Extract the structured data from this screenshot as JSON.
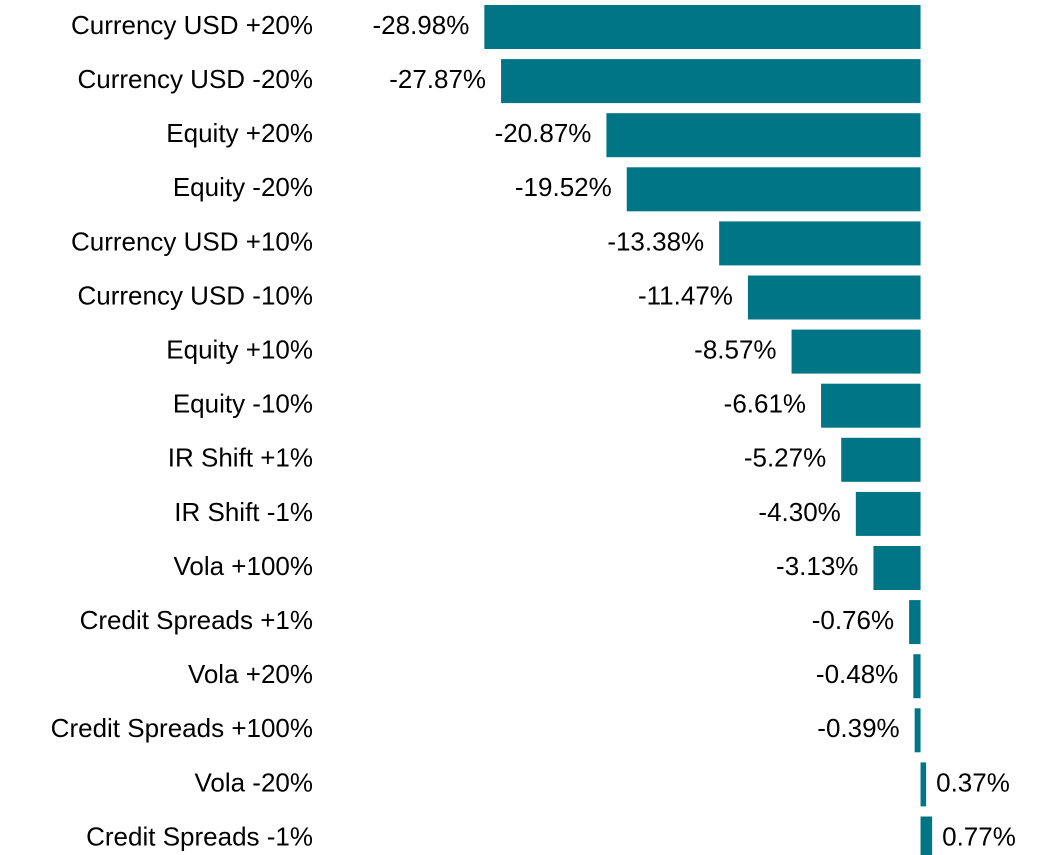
{
  "chart_data": {
    "type": "barh",
    "categories": [
      "Currency USD +20%",
      "Currency USD -20%",
      "Equity +20%",
      "Equity -20%",
      "Currency USD +10%",
      "Currency USD -10%",
      "Equity +10%",
      "Equity -10%",
      "IR Shift +1%",
      "IR Shift -1%",
      "Vola +100%",
      "Credit Spreads +1%",
      "Vola +20%",
      "Credit Spreads +100%",
      "Vola -20%",
      "Credit Spreads -1%"
    ],
    "values": [
      -28.98,
      -27.87,
      -20.87,
      -19.52,
      -13.38,
      -11.47,
      -8.57,
      -6.61,
      -5.27,
      -4.3,
      -3.13,
      -0.76,
      -0.48,
      -0.39,
      0.37,
      0.77
    ],
    "value_labels": [
      "-28.98%",
      "-27.87%",
      "-20.87%",
      "-19.52%",
      "-13.38%",
      "-11.47%",
      "-8.57%",
      "-6.61%",
      "-5.27%",
      "-4.30%",
      "-3.13%",
      "-0.76%",
      "-0.48%",
      "-0.39%",
      "0.37%",
      "0.77%"
    ],
    "color": "#007585",
    "xlim": [
      -30,
      1
    ]
  }
}
